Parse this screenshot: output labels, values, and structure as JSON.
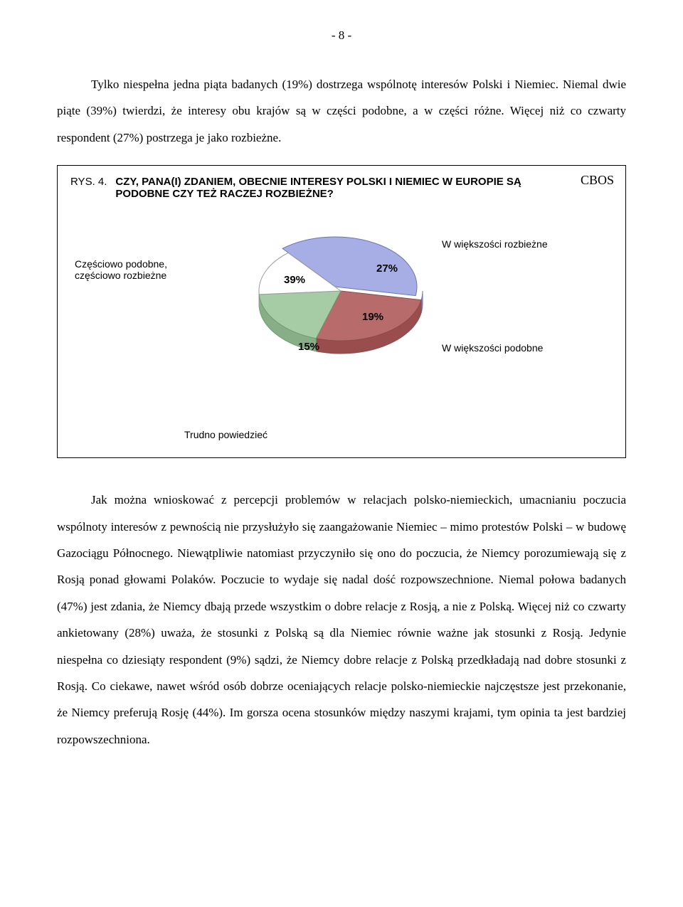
{
  "page_number": "- 8 -",
  "para1": "Tylko niespełna jedna piąta badanych (19%) dostrzega wspólnotę interesów Polski i Niemiec. Niemal dwie piąte (39%) twierdzi, że interesy obu krajów są w części podobne, a w części różne. Więcej niż co czwarty respondent (27%) postrzega je jako rozbieżne.",
  "figure": {
    "badge": "CBOS",
    "rys_label": "RYS. 4.",
    "question": "CZY, PANA(I) ZDANIEM, OBECNIE INTERESY POLSKI I NIEMIEC W EUROPIE SĄ PODOBNE CZY TEŻ RACZEJ ROZBIEŻNE?",
    "chart": {
      "type": "pie",
      "background_color": "#ffffff",
      "label_font": "Arial",
      "label_fontsize": 14,
      "pct_fontsize": 15,
      "slices": [
        {
          "key": "czesciowo",
          "label_line1": "Częściowo podobne,",
          "label_line2": "częściowo rozbieżne",
          "value": 39,
          "pct_text": "39%",
          "fill": "#a7aee6",
          "stroke": "#6b74b5"
        },
        {
          "key": "rozbiezne",
          "label": "W większości rozbieżne",
          "value": 27,
          "pct_text": "27%",
          "fill": "#b86b6b",
          "stroke": "#8b4c4c"
        },
        {
          "key": "podobne",
          "label": "W większości podobne",
          "value": 19,
          "pct_text": "19%",
          "fill": "#a6cca6",
          "stroke": "#6e9e6e"
        },
        {
          "key": "trudno",
          "label": "Trudno powiedzieć",
          "value": 15,
          "pct_text": "15%",
          "fill": "#ffffff",
          "stroke": "#9c9c9c"
        }
      ],
      "extrude_color": "#cfcfcf",
      "extrude_depth": 18
    }
  },
  "para2": "Jak można wnioskować z percepcji problemów w relacjach polsko-niemieckich, umacnianiu poczucia wspólnoty interesów z pewnością nie przysłużyło się zaangażowanie Niemiec – mimo protestów Polski – w budowę Gazociągu Północnego. Niewątpliwie natomiast przyczyniło się ono do poczucia, że Niemcy porozumiewają się z Rosją ponad głowami Polaków. Poczucie to wydaje się nadal dość rozpowszechnione. Niemal połowa badanych (47%) jest zdania, że Niemcy dbają przede wszystkim o dobre relacje  z Rosją, a nie z Polską. Więcej niż co czwarty ankietowany (28%) uważa, że stosunki  z Polską są dla Niemiec równie ważne jak stosunki z Rosją. Jedynie  niespełna co dziesiąty respondent (9%) sądzi, że Niemcy dobre relacje z Polską przedkładają nad dobre stosunki z Rosją. Co ciekawe, nawet wśród osób dobrze oceniających relacje polsko-niemieckie najczęstsze jest przekonanie, że Niemcy preferują Rosję (44%).  Im gorsza ocena stosunków między naszymi krajami, tym opinia ta jest bardziej rozpowszechniona."
}
